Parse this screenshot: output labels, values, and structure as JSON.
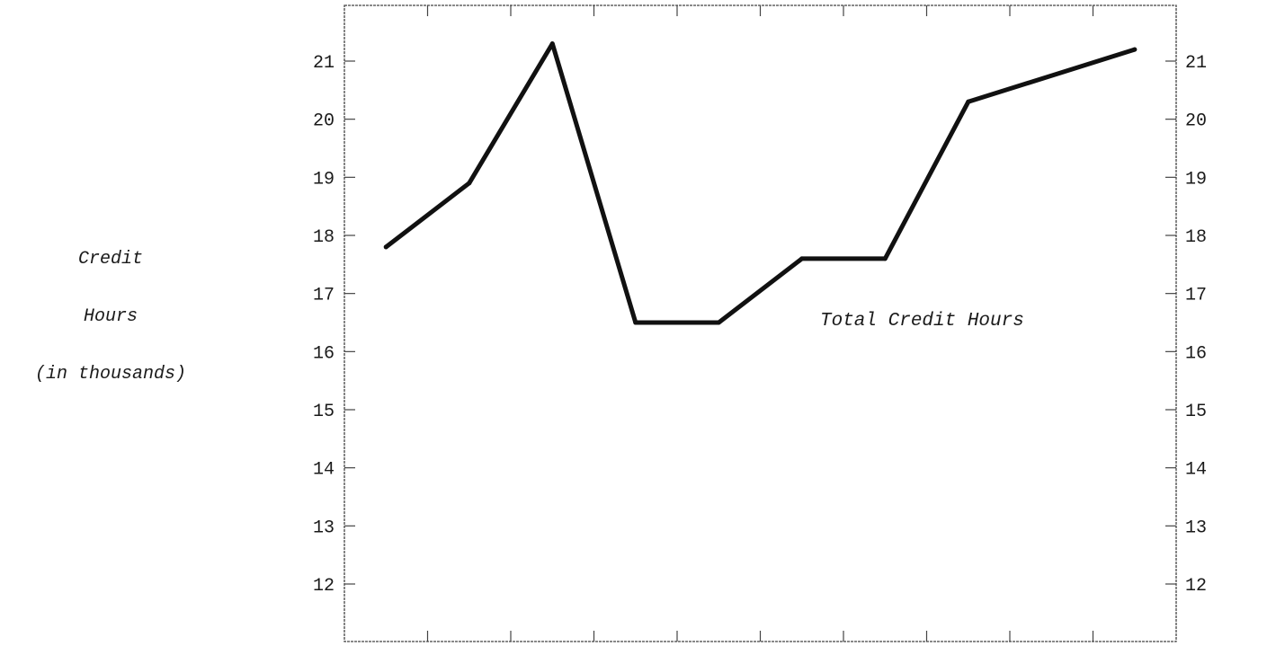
{
  "chart_data": {
    "type": "line",
    "title": "",
    "ylabel_lines": [
      "Credit",
      "Hours",
      "(in thousands)"
    ],
    "xlabel": "",
    "ylim": [
      11,
      22
    ],
    "yticks": [
      12,
      13,
      14,
      15,
      16,
      17,
      18,
      19,
      20,
      21
    ],
    "ytick_labels_left": [
      "12",
      "13",
      "14",
      "15",
      "16",
      "17",
      "18",
      "19",
      "20",
      "21"
    ],
    "ytick_labels_right": [
      "12",
      "13",
      "14",
      "15",
      "16",
      "17",
      "18",
      "19",
      "20",
      "21"
    ],
    "x_intervals": 10,
    "series": [
      {
        "name": "Total Credit Hours",
        "x": [
          0.5,
          1.5,
          2.5,
          3.5,
          4.5,
          5.5,
          6.5,
          7.5,
          9.5
        ],
        "values": [
          17.8,
          18.9,
          21.3,
          16.5,
          16.5,
          17.6,
          17.6,
          20.3,
          21.2
        ]
      }
    ]
  }
}
